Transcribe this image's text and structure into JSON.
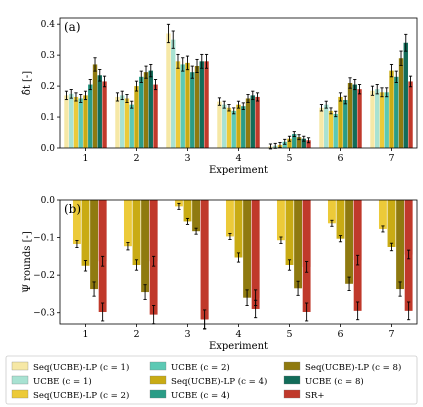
{
  "chart_data": [
    {
      "type": "bar",
      "panel_label": "(a)",
      "xlabel": "Experiment",
      "ylabel": "δ̂t [-]",
      "categories": [
        "1",
        "2",
        "3",
        "4",
        "5",
        "6",
        "7"
      ],
      "ylim": [
        0,
        0.42
      ],
      "yticks": [
        "0.0",
        "0.1",
        "0.2",
        "0.3",
        "0.4"
      ],
      "grid": false,
      "series": [
        {
          "name": "Seq(UCBE)-LP (c = 1)",
          "color": "#f6e8a6",
          "values": [
            0.17,
            0.165,
            0.37,
            0.15,
            0.005,
            0.13,
            0.185
          ]
        },
        {
          "name": "UCBE (c = 1)",
          "color": "#a8e2d2",
          "values": [
            0.175,
            0.17,
            0.35,
            0.14,
            0.007,
            0.14,
            0.19
          ]
        },
        {
          "name": "Seq(UCBE)-LP (c = 2)",
          "color": "#ecca39",
          "values": [
            0.165,
            0.16,
            0.28,
            0.13,
            0.01,
            0.12,
            0.18
          ]
        },
        {
          "name": "UCBE (c = 2)",
          "color": "#5cc9b4",
          "values": [
            0.16,
            0.14,
            0.27,
            0.12,
            0.02,
            0.11,
            0.18
          ]
        },
        {
          "name": "Seq(UCBE)-LP (c = 4)",
          "color": "#c9ab14",
          "values": [
            0.17,
            0.2,
            0.275,
            0.14,
            0.03,
            0.165,
            0.25
          ]
        },
        {
          "name": "UCBE (c = 4)",
          "color": "#2a9c86",
          "values": [
            0.205,
            0.23,
            0.245,
            0.135,
            0.045,
            0.155,
            0.23
          ]
        },
        {
          "name": "Seq(UCBE)-LP (c = 8)",
          "color": "#8f7a10",
          "values": [
            0.27,
            0.245,
            0.265,
            0.16,
            0.035,
            0.21,
            0.29
          ]
        },
        {
          "name": "UCBE (c = 8)",
          "color": "#126c59",
          "values": [
            0.235,
            0.25,
            0.28,
            0.17,
            0.03,
            0.205,
            0.34
          ]
        },
        {
          "name": "SR+",
          "color": "#c0392b",
          "values": [
            0.215,
            0.205,
            0.28,
            0.165,
            0.025,
            0.19,
            0.215
          ]
        }
      ]
    },
    {
      "type": "bar",
      "panel_label": "(b)",
      "xlabel": "Experiment",
      "ylabel": "Ψ rounds [-]",
      "categories": [
        "1",
        "2",
        "3",
        "4",
        "5",
        "6",
        "7"
      ],
      "ylim": [
        -0.33,
        0.0
      ],
      "yticks": [
        "−0.3",
        "−0.2",
        "−0.1",
        "0.0"
      ],
      "grid": false,
      "series": [
        {
          "name": "Seq(UCBE)-LP (c = 1)",
          "color": "#f6e8a6",
          "values": [
            0,
            0,
            0,
            0,
            0,
            0,
            0
          ]
        },
        {
          "name": "Seq(UCBE)-LP (c = 2)",
          "color": "#ecca39",
          "values": [
            -0.117,
            -0.123,
            -0.017,
            -0.097,
            -0.107,
            -0.062,
            -0.077
          ]
        },
        {
          "name": "Seq(UCBE)-LP (c = 4)",
          "color": "#c9ab14",
          "values": [
            -0.175,
            -0.173,
            -0.057,
            -0.153,
            -0.173,
            -0.103,
            -0.125
          ]
        },
        {
          "name": "Seq(UCBE)-LP (c = 8)",
          "color": "#8f7a10",
          "values": [
            -0.237,
            -0.245,
            -0.083,
            -0.26,
            -0.235,
            -0.223,
            -0.237
          ]
        },
        {
          "name": "SR+",
          "color": "#c0392b",
          "values": [
            -0.298,
            -0.305,
            -0.317,
            -0.29,
            -0.298,
            -0.295,
            -0.295
          ]
        },
        {
          "name": "SR+",
          "color": "#c0392b",
          "values": [
            -0.163,
            -0.163,
            -0.318,
            -0.26,
            -0.178,
            -0.16,
            -0.145
          ]
        }
      ]
    }
  ],
  "legend": {
    "columns": [
      [
        {
          "label": "Seq(UCBE)-LP (c = 1)",
          "color": "#f6e8a6"
        },
        {
          "label": "UCBE (c = 1)",
          "color": "#a8e2d2"
        },
        {
          "label": "Seq(UCBE)-LP (c = 2)",
          "color": "#ecca39"
        }
      ],
      [
        {
          "label": "UCBE (c = 2)",
          "color": "#5cc9b4"
        },
        {
          "label": "Seq(UCBE)-LP (c = 4)",
          "color": "#c9ab14"
        },
        {
          "label": "UCBE (c = 4)",
          "color": "#2a9c86"
        }
      ],
      [
        {
          "label": "Seq(UCBE)-LP (c = 8)",
          "color": "#8f7a10"
        },
        {
          "label": "UCBE (c = 8)",
          "color": "#126c59"
        },
        {
          "label": "SR+",
          "color": "#c0392b"
        }
      ]
    ]
  }
}
